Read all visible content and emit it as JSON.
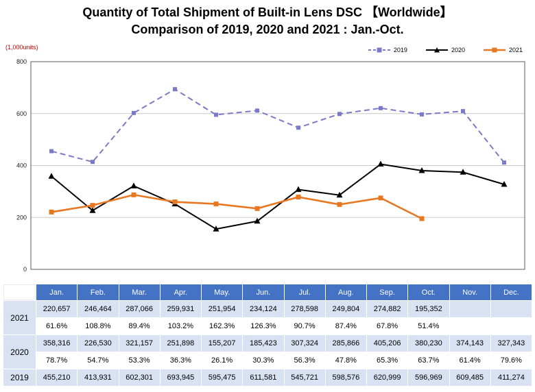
{
  "title_line1": "Quantity of Total Shipment of Built-in Lens DSC 【Worldwide】",
  "title_line2": "Comparison of 2019, 2020 and 2021 : Jan.-Oct.",
  "y_axis_unit": "(1,000units)",
  "chart_data": {
    "type": "line",
    "title": "Quantity of Total Shipment of Built-in Lens DSC 【Worldwide】 Comparison of 2019, 2020 and 2021 : Jan.-Oct.",
    "ylabel": "(1,000units)",
    "xlabel": "",
    "categories": [
      "Jan.",
      "Feb.",
      "Mar.",
      "Apr.",
      "May.",
      "Jun.",
      "Jul.",
      "Aug.",
      "Sep.",
      "Oct.",
      "Nov.",
      "Dec."
    ],
    "series": [
      {
        "name": "2019",
        "color": "#7A7AC8",
        "style": "dashed",
        "marker": "square",
        "values": [
          455.21,
          413.931,
          602.301,
          693.945,
          595.475,
          611.581,
          545.721,
          598.576,
          620.999,
          596.969,
          609.485,
          411.274
        ]
      },
      {
        "name": "2020",
        "color": "#000000",
        "style": "solid",
        "marker": "triangle",
        "values": [
          358.316,
          226.53,
          321.157,
          251.898,
          155.207,
          185.423,
          307.324,
          285.866,
          405.206,
          380.23,
          374.143,
          327.343
        ]
      },
      {
        "name": "2021",
        "color": "#E87722",
        "style": "solid",
        "marker": "square",
        "values": [
          220.657,
          246.464,
          287.066,
          259.931,
          251.954,
          234.124,
          278.598,
          249.804,
          274.882,
          195.352
        ]
      }
    ],
    "ylim": [
      0,
      800
    ],
    "yticks": [
      0,
      200,
      400,
      600,
      800
    ],
    "grid": true,
    "legend_position": "top-right"
  },
  "table": {
    "months": [
      "Jan.",
      "Feb.",
      "Mar.",
      "Apr.",
      "May.",
      "Jun.",
      "Jul.",
      "Aug.",
      "Sep.",
      "Oct.",
      "Nov.",
      "Dec."
    ],
    "rows": [
      {
        "year": "2021",
        "values": [
          "220,657",
          "246,464",
          "287,066",
          "259,931",
          "251,954",
          "234,124",
          "278,598",
          "249,804",
          "274,882",
          "195,352",
          "",
          ""
        ],
        "pct": [
          "61.6%",
          "108.8%",
          "89.4%",
          "103.2%",
          "162.3%",
          "126.3%",
          "90.7%",
          "87.4%",
          "67.8%",
          "51.4%",
          "",
          ""
        ]
      },
      {
        "year": "2020",
        "values": [
          "358,316",
          "226,530",
          "321,157",
          "251,898",
          "155,207",
          "185,423",
          "307,324",
          "285,866",
          "405,206",
          "380,230",
          "374,143",
          "327,343"
        ],
        "pct": [
          "78.7%",
          "54.7%",
          "53.3%",
          "36.3%",
          "26.1%",
          "30.3%",
          "56.3%",
          "47.8%",
          "65.3%",
          "63.7%",
          "61.4%",
          "79.6%"
        ]
      },
      {
        "year": "2019",
        "values": [
          "455,210",
          "413,931",
          "602,301",
          "693,945",
          "595,475",
          "611,581",
          "545,721",
          "598,576",
          "620,999",
          "596,969",
          "609,485",
          "411,274"
        ]
      }
    ]
  }
}
